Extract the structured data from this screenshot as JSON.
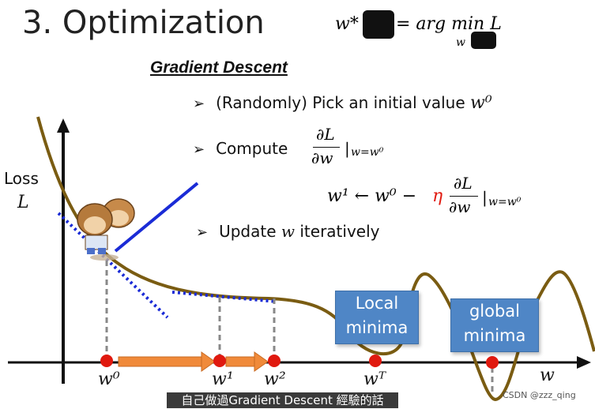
{
  "slide": {
    "title": "3. Optimization",
    "formula": {
      "lhs": "w*",
      "rhs": "= arg min L",
      "sub": "w"
    },
    "heading": "Gradient Descent",
    "bullets": [
      {
        "text": "(Randomly) Pick an initial value ",
        "math": "w⁰"
      },
      {
        "text": "Compute ",
        "math": "∂L/∂w |w=w⁰"
      },
      {
        "text": "Update ",
        "math": "w",
        "suffix": " iteratively"
      }
    ],
    "update_rule": {
      "left": "w¹ ← w⁰ − ",
      "eta": "η",
      "right": "∂L/∂w |w=w⁰"
    },
    "axis_y_label_1": "Loss",
    "axis_y_label_2": "L",
    "axis_x_label": "w",
    "points": [
      "w⁰",
      "w¹",
      "w²",
      "wᵀ"
    ],
    "local_box": "Local minima",
    "global_box": "global minima",
    "subtitle": "自己做過Gradient Descent 經驗的話",
    "watermark": "CSDN @zzz_qing",
    "colors": {
      "curve": "#7a5c12",
      "tangent_blue": "#1a2bd6",
      "point_red": "#e0190f",
      "arrow_orange": "#f08a3a",
      "box_blue": "#4f86c6"
    }
  }
}
